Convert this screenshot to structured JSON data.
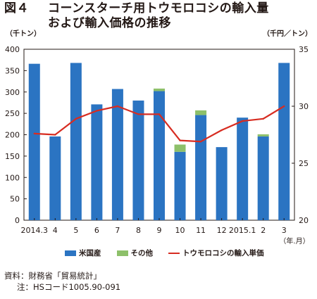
{
  "title": {
    "fig_label": "図４",
    "line1": "コーンスターチ用トウモロコシの輸入量",
    "line2": "および輸入価格の推移"
  },
  "chart_data": {
    "type": "bar",
    "categories": [
      "2014.3",
      "4",
      "5",
      "6",
      "7",
      "8",
      "9",
      "10",
      "11",
      "12",
      "2015.1",
      "2",
      "3"
    ],
    "series": [
      {
        "name": "米国産",
        "kind": "bar",
        "stack": "volume",
        "axis": "left",
        "color": "#2b74c2",
        "values": [
          366,
          196,
          368,
          271,
          307,
          280,
          302,
          160,
          246,
          171,
          240,
          196,
          368
        ]
      },
      {
        "name": "その他",
        "kind": "bar",
        "stack": "volume",
        "axis": "left",
        "color": "#8dc06a",
        "values": [
          0,
          0,
          0,
          0,
          0,
          0,
          6,
          17,
          11,
          0,
          0,
          5,
          0
        ]
      },
      {
        "name": "トウモロコシの輸入単価",
        "kind": "line",
        "axis": "right",
        "color": "#d72c21",
        "values": [
          27.6,
          27.5,
          28.9,
          29.6,
          30.0,
          29.3,
          29.3,
          27.0,
          26.9,
          27.9,
          28.7,
          28.9,
          30.0
        ]
      }
    ],
    "left_axis": {
      "unit": "（千トン）",
      "ylim": [
        0,
        400
      ],
      "ticks": [
        0,
        50,
        100,
        150,
        200,
        250,
        300,
        350,
        400
      ]
    },
    "right_axis": {
      "unit": "（千円／トン）",
      "ylim": [
        20,
        35
      ],
      "ticks": [
        20,
        25,
        30,
        35
      ]
    },
    "x_unit": "（年.月）",
    "grid": false,
    "legend_position": "bottom"
  },
  "notes": {
    "source": "資料：財務省「貿易統計」",
    "note": "注：HSコード1005.90-091"
  }
}
